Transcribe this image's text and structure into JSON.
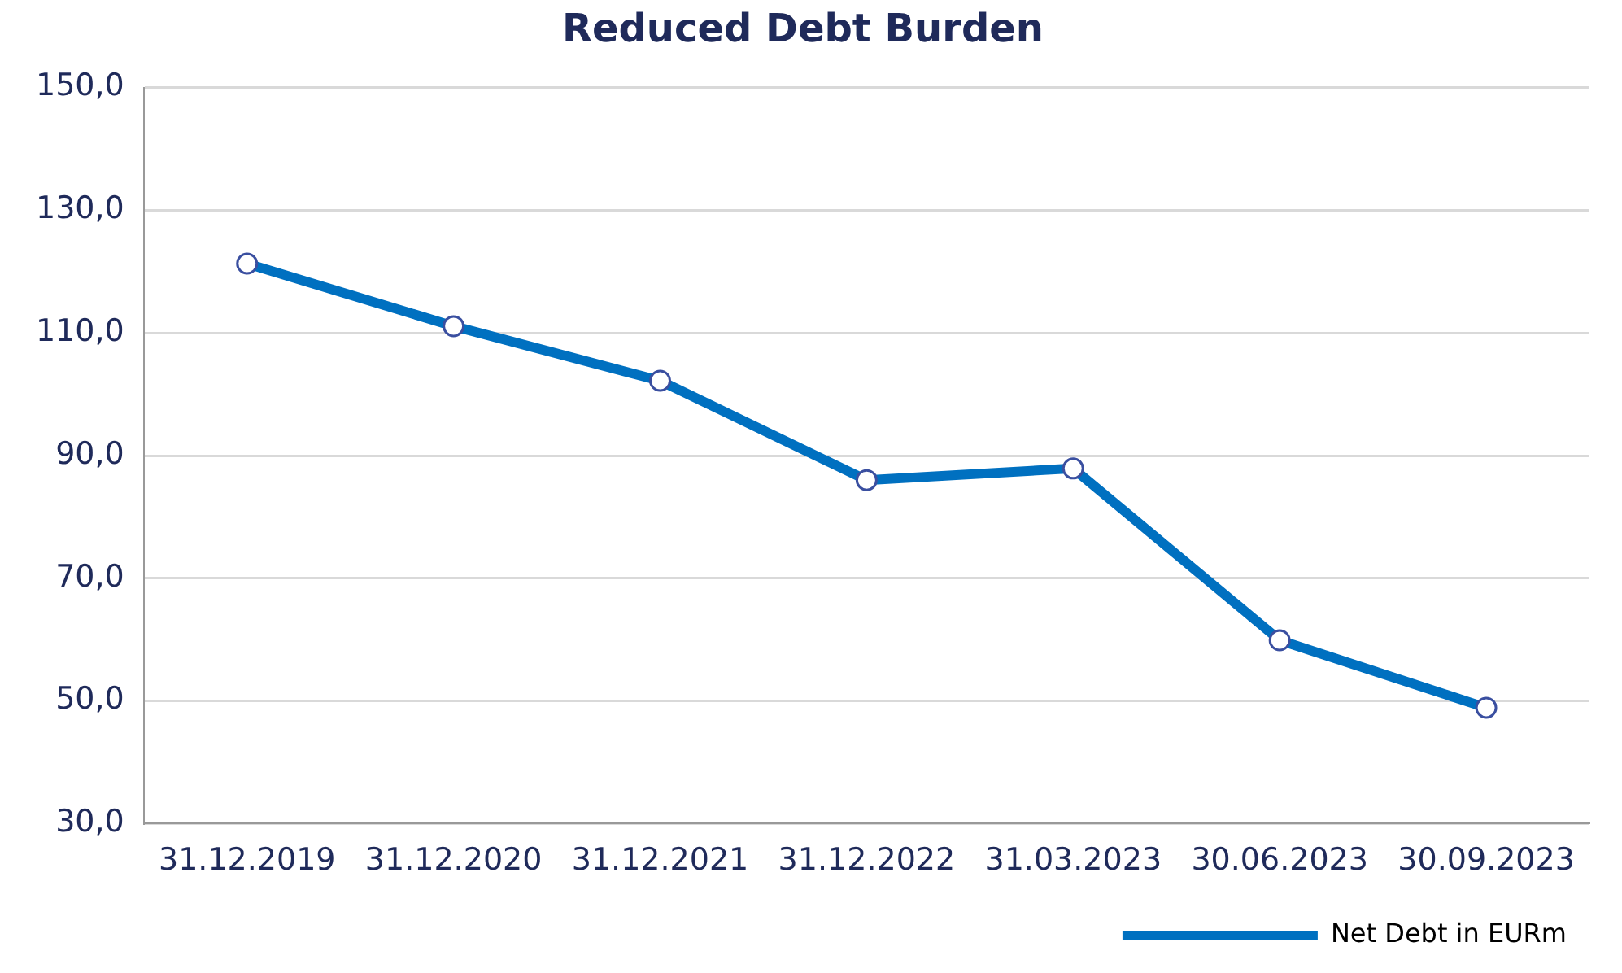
{
  "chart_data": {
    "type": "line",
    "title": "Reduced Debt Burden",
    "categories": [
      "31.12.2019",
      "31.12.2020",
      "31.12.2021",
      "31.12.2022",
      "31.03.2023",
      "30.06.2023",
      "30.09.2023"
    ],
    "series": [
      {
        "name": "Net Debt in EURm",
        "color": "#0070c0",
        "values": [
          121.3,
          111.1,
          102.2,
          86.0,
          87.9,
          59.9,
          48.9
        ]
      }
    ],
    "ylim": [
      30,
      150
    ],
    "yticks": [
      {
        "value": 30,
        "label": "30,0"
      },
      {
        "value": 50,
        "label": "50,0"
      },
      {
        "value": 70,
        "label": "70,0"
      },
      {
        "value": 90,
        "label": "90,0"
      },
      {
        "value": 110,
        "label": "110,0"
      },
      {
        "value": 130,
        "label": "130,0"
      },
      {
        "value": 150,
        "label": "150,0"
      }
    ],
    "grid": "y",
    "legend": "bottom right",
    "marker": "circle",
    "line_style": "solid"
  }
}
